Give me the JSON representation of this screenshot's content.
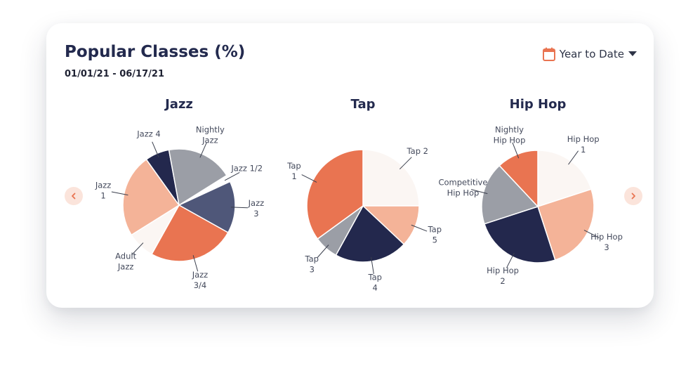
{
  "title": "Popular Classes (%)",
  "date_range": "01/01/21 - 06/17/21",
  "period_selector": {
    "label": "Year to Date",
    "icon": "calendar-icon",
    "caret_icon": "caret-down-icon"
  },
  "nav": {
    "prev_icon": "chevron-left-icon",
    "next_icon": "chevron-right-icon"
  },
  "colors": {
    "title": "#232a4e",
    "accent": "#e97451",
    "navy": "#23284d",
    "slate": "#4f5779",
    "gray": "#9b9ea6",
    "peach": "#f4b398",
    "cream": "#fbf6f3"
  },
  "chart_data": [
    {
      "type": "pie",
      "title": "Jazz",
      "slices": [
        {
          "label": [
            "Jazz 1/2"
          ],
          "value": 2,
          "color": "#ffffff"
        },
        {
          "label": [
            "Jazz",
            "3"
          ],
          "value": 15,
          "color": "#4f5779"
        },
        {
          "label": [
            "Jazz",
            "3/4"
          ],
          "value": 25,
          "color": "#e97451"
        },
        {
          "label": [
            "Adult",
            "Jazz"
          ],
          "value": 8,
          "color": "#fbf6f3"
        },
        {
          "label": [
            "Jazz",
            "1"
          ],
          "value": 24,
          "color": "#f4b398"
        },
        {
          "label": [
            "Jazz 4"
          ],
          "value": 7,
          "color": "#23284d"
        },
        {
          "label": [
            "Nightly",
            "Jazz"
          ],
          "value": 19,
          "color": "#9b9ea6"
        }
      ]
    },
    {
      "type": "pie",
      "title": "Tap",
      "slices": [
        {
          "label": [
            "Tap 2"
          ],
          "value": 25,
          "color": "#fbf6f3"
        },
        {
          "label": [
            "Tap",
            "5"
          ],
          "value": 12,
          "color": "#f4b398"
        },
        {
          "label": [
            "Tap",
            "4"
          ],
          "value": 21,
          "color": "#23284d"
        },
        {
          "label": [
            "Tap",
            "3"
          ],
          "value": 7,
          "color": "#9b9ea6"
        },
        {
          "label": [
            "Tap",
            "1"
          ],
          "value": 35,
          "color": "#e97451"
        }
      ]
    },
    {
      "type": "pie",
      "title": "Hip Hop",
      "slices": [
        {
          "label": [
            "Hip Hop",
            "1"
          ],
          "value": 20,
          "color": "#fbf6f3"
        },
        {
          "label": [
            "Hip Hop",
            "3"
          ],
          "value": 25,
          "color": "#f4b398"
        },
        {
          "label": [
            "Hip Hop",
            "2"
          ],
          "value": 25,
          "color": "#23284d"
        },
        {
          "label": [
            "Competitive",
            "Hip Hop"
          ],
          "value": 18,
          "color": "#9b9ea6"
        },
        {
          "label": [
            "Nightly",
            "Hip Hop"
          ],
          "value": 12,
          "color": "#e97451"
        }
      ]
    }
  ]
}
